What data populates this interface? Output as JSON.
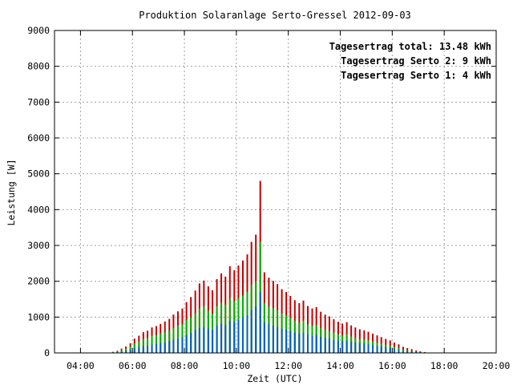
{
  "chart_data": {
    "type": "bar",
    "title": "Produktion Solaranlage Serto-Gressel 2012-09-03",
    "xlabel": "Zeit (UTC)",
    "ylabel": "Leistung [W]",
    "xlim": [
      3.0,
      20.0
    ],
    "ylim": [
      0,
      9000
    ],
    "x_ticks": [
      4,
      6,
      8,
      10,
      12,
      14,
      16,
      18,
      20
    ],
    "x_tick_labels": [
      "04:00",
      "06:00",
      "08:00",
      "10:00",
      "12:00",
      "14:00",
      "16:00",
      "18:00",
      "20:00"
    ],
    "y_ticks": [
      0,
      1000,
      2000,
      3000,
      4000,
      5000,
      6000,
      7000,
      8000,
      9000
    ],
    "y_tick_labels": [
      "0",
      "1000",
      "2000",
      "3000",
      "4000",
      "5000",
      "6000",
      "7000",
      "8000",
      "9000"
    ],
    "grid": true,
    "legend_position": "top-right",
    "colors": {
      "serto1": "#0060c0",
      "serto2": "#00b000",
      "total": "#c00000"
    },
    "legend": [
      {
        "name": "Tagesertrag total: 13.48 kWh",
        "color": "#c00000"
      },
      {
        "name": "Tagesertrag Serto 2: 9 kWh",
        "color": "#00b000"
      },
      {
        "name": "Tagesertrag Serto 1: 4 kWh",
        "color": "#0060c0"
      }
    ],
    "series_stack_order": [
      "serto1",
      "serto2",
      "total"
    ],
    "times": [
      5.25,
      5.42,
      5.58,
      5.75,
      5.92,
      6.08,
      6.25,
      6.42,
      6.58,
      6.75,
      6.92,
      7.08,
      7.25,
      7.42,
      7.58,
      7.75,
      7.92,
      8.08,
      8.25,
      8.42,
      8.58,
      8.75,
      8.92,
      9.08,
      9.25,
      9.42,
      9.58,
      9.75,
      9.92,
      10.08,
      10.25,
      10.42,
      10.58,
      10.75,
      10.92,
      11.08,
      11.25,
      11.42,
      11.58,
      11.75,
      11.92,
      12.08,
      12.25,
      12.42,
      12.58,
      12.75,
      12.92,
      13.08,
      13.25,
      13.42,
      13.58,
      13.75,
      13.92,
      14.08,
      14.25,
      14.42,
      14.58,
      14.75,
      14.92,
      15.08,
      15.25,
      15.42,
      15.58,
      15.75,
      15.92,
      16.08,
      16.25,
      16.42,
      16.58,
      16.75,
      16.92,
      17.08,
      17.25
    ],
    "serto1": [
      10,
      20,
      40,
      60,
      90,
      130,
      160,
      190,
      200,
      230,
      250,
      270,
      300,
      330,
      370,
      400,
      440,
      500,
      560,
      640,
      700,
      720,
      680,
      650,
      760,
      820,
      780,
      900,
      860,
      920,
      980,
      1050,
      1200,
      1300,
      1700,
      850,
      800,
      760,
      720,
      680,
      650,
      610,
      570,
      540,
      560,
      510,
      480,
      500,
      450,
      420,
      400,
      370,
      350,
      330,
      340,
      310,
      290,
      270,
      260,
      240,
      220,
      200,
      180,
      160,
      150,
      120,
      100,
      70,
      55,
      45,
      30,
      20,
      10
    ],
    "serto2": [
      20,
      40,
      80,
      120,
      180,
      270,
      320,
      390,
      420,
      480,
      500,
      540,
      580,
      620,
      700,
      760,
      800,
      920,
      1000,
      1100,
      1240,
      1300,
      1180,
      1100,
      1300,
      1400,
      1350,
      1520,
      1450,
      1520,
      1600,
      1700,
      1900,
      2000,
      3100,
      1400,
      1300,
      1250,
      1200,
      1100,
      1050,
      980,
      900,
      850,
      900,
      800,
      760,
      780,
      700,
      650,
      620,
      570,
      520,
      490,
      520,
      460,
      420,
      390,
      370,
      350,
      320,
      290,
      260,
      230,
      200,
      170,
      140,
      100,
      80,
      60,
      40,
      25,
      15
    ],
    "total": [
      30,
      60,
      120,
      180,
      270,
      400,
      480,
      580,
      620,
      710,
      750,
      810,
      880,
      950,
      1070,
      1160,
      1240,
      1420,
      1560,
      1740,
      1940,
      2020,
      1860,
      1750,
      2060,
      2220,
      2130,
      2420,
      2310,
      2440,
      2580,
      2750,
      3100,
      3300,
      4800,
      2250,
      2100,
      2010,
      1920,
      1780,
      1700,
      1590,
      1470,
      1390,
      1460,
      1310,
      1240,
      1280,
      1150,
      1070,
      1020,
      940,
      870,
      820,
      860,
      770,
      710,
      660,
      630,
      590,
      540,
      490,
      440,
      390,
      350,
      290,
      240,
      170,
      135,
      105,
      70,
      45,
      25
    ]
  }
}
